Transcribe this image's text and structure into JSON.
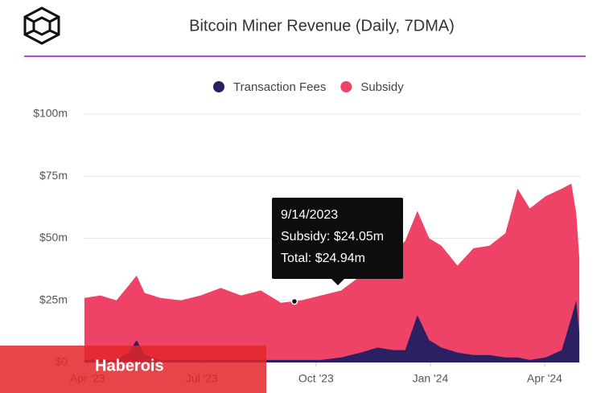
{
  "chart_data": {
    "type": "stacked_area",
    "title": "Bitcoin Miner Revenue (Daily, 7DMA)",
    "x": [
      -0.08,
      0.34,
      0.76,
      1.08,
      1.29,
      1.5,
      1.92,
      2.45,
      2.97,
      3.5,
      4.03,
      4.55,
      5.08,
      5.61,
      6.13,
      6.66,
      7.18,
      7.61,
      8.03,
      8.34,
      8.66,
      8.97,
      9.29,
      9.71,
      10.13,
      10.55,
      10.97,
      11.29,
      11.61,
      12.03,
      12.45,
      12.7,
      12.83,
      12.91
    ],
    "series": [
      {
        "name": "Transaction Fees",
        "color": "#2b2062",
        "values": [
          1,
          1,
          1,
          4,
          9,
          3,
          1,
          1,
          1,
          1,
          1,
          1,
          1,
          1,
          1,
          2,
          4,
          6,
          5,
          5,
          19,
          9,
          6,
          4,
          3,
          3,
          2,
          2,
          1,
          2,
          5,
          18,
          25,
          12
        ]
      },
      {
        "name": "Subsidy",
        "color": "#ef4267",
        "values": [
          25,
          26,
          24,
          27,
          26,
          25,
          25,
          24,
          26,
          29,
          26,
          28,
          23,
          24,
          26,
          27,
          31,
          36,
          39,
          44,
          42,
          41,
          41,
          35,
          43,
          44,
          50,
          68,
          61,
          65,
          65,
          54,
          35,
          30
        ]
      }
    ],
    "xlim": [
      -0.1,
      12.95
    ],
    "xticks": [
      {
        "value": 0,
        "label": "Apr '23"
      },
      {
        "value": 3,
        "label": "Jul '23"
      },
      {
        "value": 6,
        "label": "Oct '23"
      },
      {
        "value": 9,
        "label": "Jan '24"
      },
      {
        "value": 12,
        "label": "Apr '24"
      }
    ],
    "ylim": [
      0,
      100
    ],
    "yticks": [
      {
        "value": 0,
        "label": "$0"
      },
      {
        "value": 25,
        "label": "$25m"
      },
      {
        "value": 50,
        "label": "$50m"
      },
      {
        "value": 75,
        "label": "$75m"
      },
      {
        "value": 100,
        "label": "$100m"
      }
    ],
    "grid": true,
    "legend": "top",
    "annotations": [
      "9/14/2023",
      "Subsidy: $24.05m",
      "Total: $24.94m"
    ],
    "watermark": "Haberois"
  }
}
